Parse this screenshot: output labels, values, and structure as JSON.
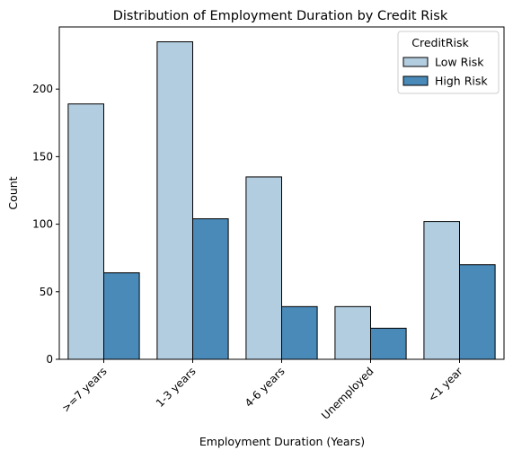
{
  "chart_data": {
    "type": "bar",
    "title": "Distribution of Employment Duration by Credit Risk",
    "xlabel": "Employment Duration (Years)",
    "ylabel": "Count",
    "categories": [
      ">=7 years",
      "1-3 years",
      "4-6 years",
      "Unemployed",
      "<1 year"
    ],
    "series": [
      {
        "name": "Low Risk",
        "values": [
          189,
          235,
          135,
          39,
          102
        ],
        "color": "#b3cde0"
      },
      {
        "name": "High Risk",
        "values": [
          64,
          104,
          39,
          23,
          70
        ],
        "color": "#4a8ab9"
      }
    ],
    "ylim": [
      0,
      246
    ],
    "yticks": [
      0,
      50,
      100,
      150,
      200
    ],
    "grid": false,
    "legend": {
      "title": "CreditRisk",
      "placement": "top-right"
    }
  }
}
